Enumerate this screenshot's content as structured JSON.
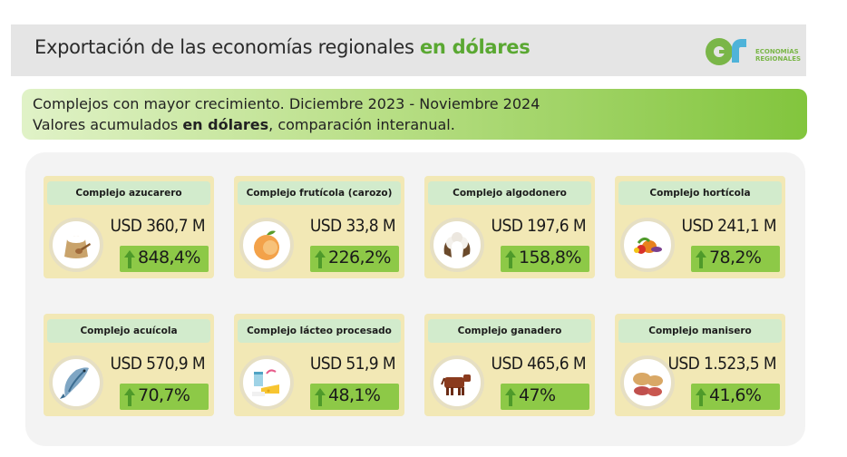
{
  "header": {
    "title_main": "Exportación de las economías regionales ",
    "title_highlight": "en dólares",
    "logo_line1": "ECONOMÍAS",
    "logo_line2": "REGIONALES"
  },
  "banner": {
    "line1": "Complejos con mayor crecimiento. Diciembre 2023 - Noviembre 2024",
    "line2_pre": "Valores acumulados ",
    "line2_bold": "en dólares",
    "line2_post": ", comparación interanual."
  },
  "colors": {
    "accent_green": "#5aa832",
    "pct_green": "#8dc947",
    "arrow_green": "#4e9a2a",
    "card_bg": "#f2e8b5",
    "label_bg": "#d2ebcc"
  },
  "cards": [
    {
      "label": "Complejo azucarero",
      "value": "USD 360,7 M",
      "pct": "848,4%",
      "icon": "sugar-sack-icon"
    },
    {
      "label": "Complejo frutícola (carozo)",
      "value": "USD 33,8 M",
      "pct": "226,2%",
      "icon": "peach-icon"
    },
    {
      "label": "Complejo algodonero",
      "value": "USD 197,6 M",
      "pct": "158,8%",
      "icon": "cotton-icon"
    },
    {
      "label": "Complejo hortícola",
      "value": "USD 241,1 M",
      "pct": "78,2%",
      "icon": "vegetables-icon"
    },
    {
      "label": "Complejo acuícola",
      "value": "USD 570,9 M",
      "pct": "70,7%",
      "icon": "fish-icon"
    },
    {
      "label": "Complejo lácteo procesado",
      "value": "USD 51,9 M",
      "pct": "48,1%",
      "icon": "dairy-icon"
    },
    {
      "label": "Complejo ganadero",
      "value": "USD 465,6 M",
      "pct": "47%",
      "icon": "cow-icon"
    },
    {
      "label": "Complejo manisero",
      "value": "USD 1.523,5 M",
      "pct": "41,6%",
      "icon": "peanut-icon"
    }
  ]
}
